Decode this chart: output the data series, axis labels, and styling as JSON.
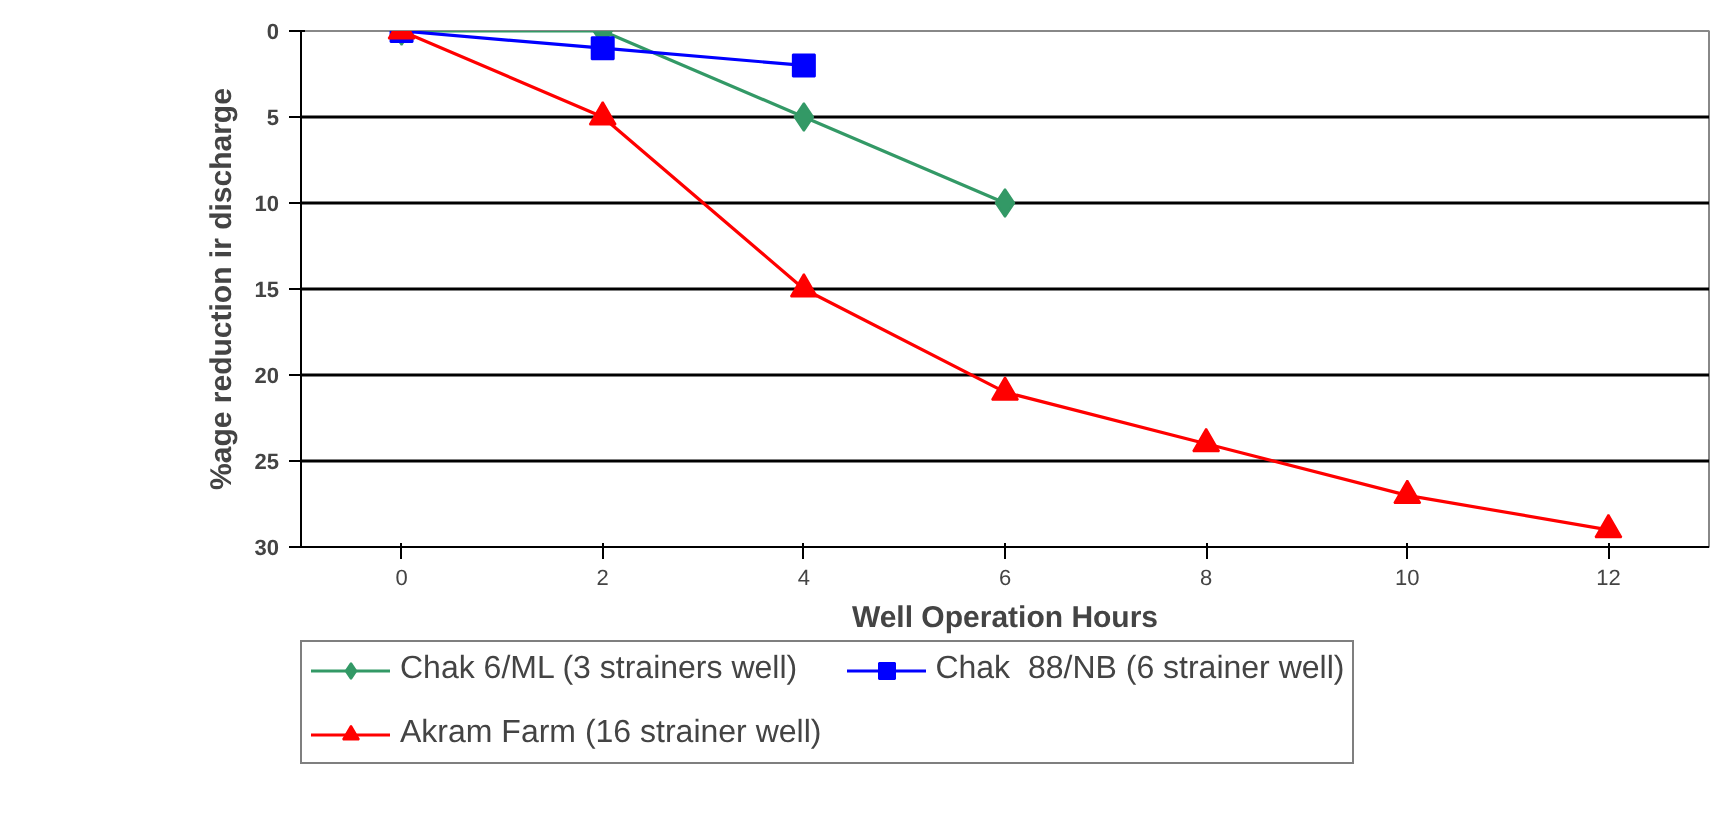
{
  "chart_data": {
    "type": "line",
    "xlabel": "Well Operation Hours",
    "ylabel": "%age reduction ir discharge",
    "categories": [
      "0",
      "2",
      "4",
      "6",
      "8",
      "10",
      "12"
    ],
    "ylim": [
      30,
      0
    ],
    "yticks": [
      0,
      5,
      10,
      15,
      20,
      25,
      30
    ],
    "grid": "y",
    "legend": "bottom",
    "series": [
      {
        "name": "Chak 6/ML (3 strainers well)",
        "color": "#339966",
        "marker": "diamond",
        "values": [
          0,
          0,
          5,
          10,
          null,
          null,
          null
        ]
      },
      {
        "name": "Chak  88/NB (6 strainer well)",
        "color": "#0000ff",
        "marker": "square",
        "values": [
          0,
          1,
          2,
          null,
          null,
          null,
          null
        ]
      },
      {
        "name": "Akram Farm (16 strainer well)",
        "color": "#ff0000",
        "marker": "triangle",
        "values": [
          0,
          5,
          15,
          21,
          24,
          27,
          29
        ]
      }
    ]
  }
}
